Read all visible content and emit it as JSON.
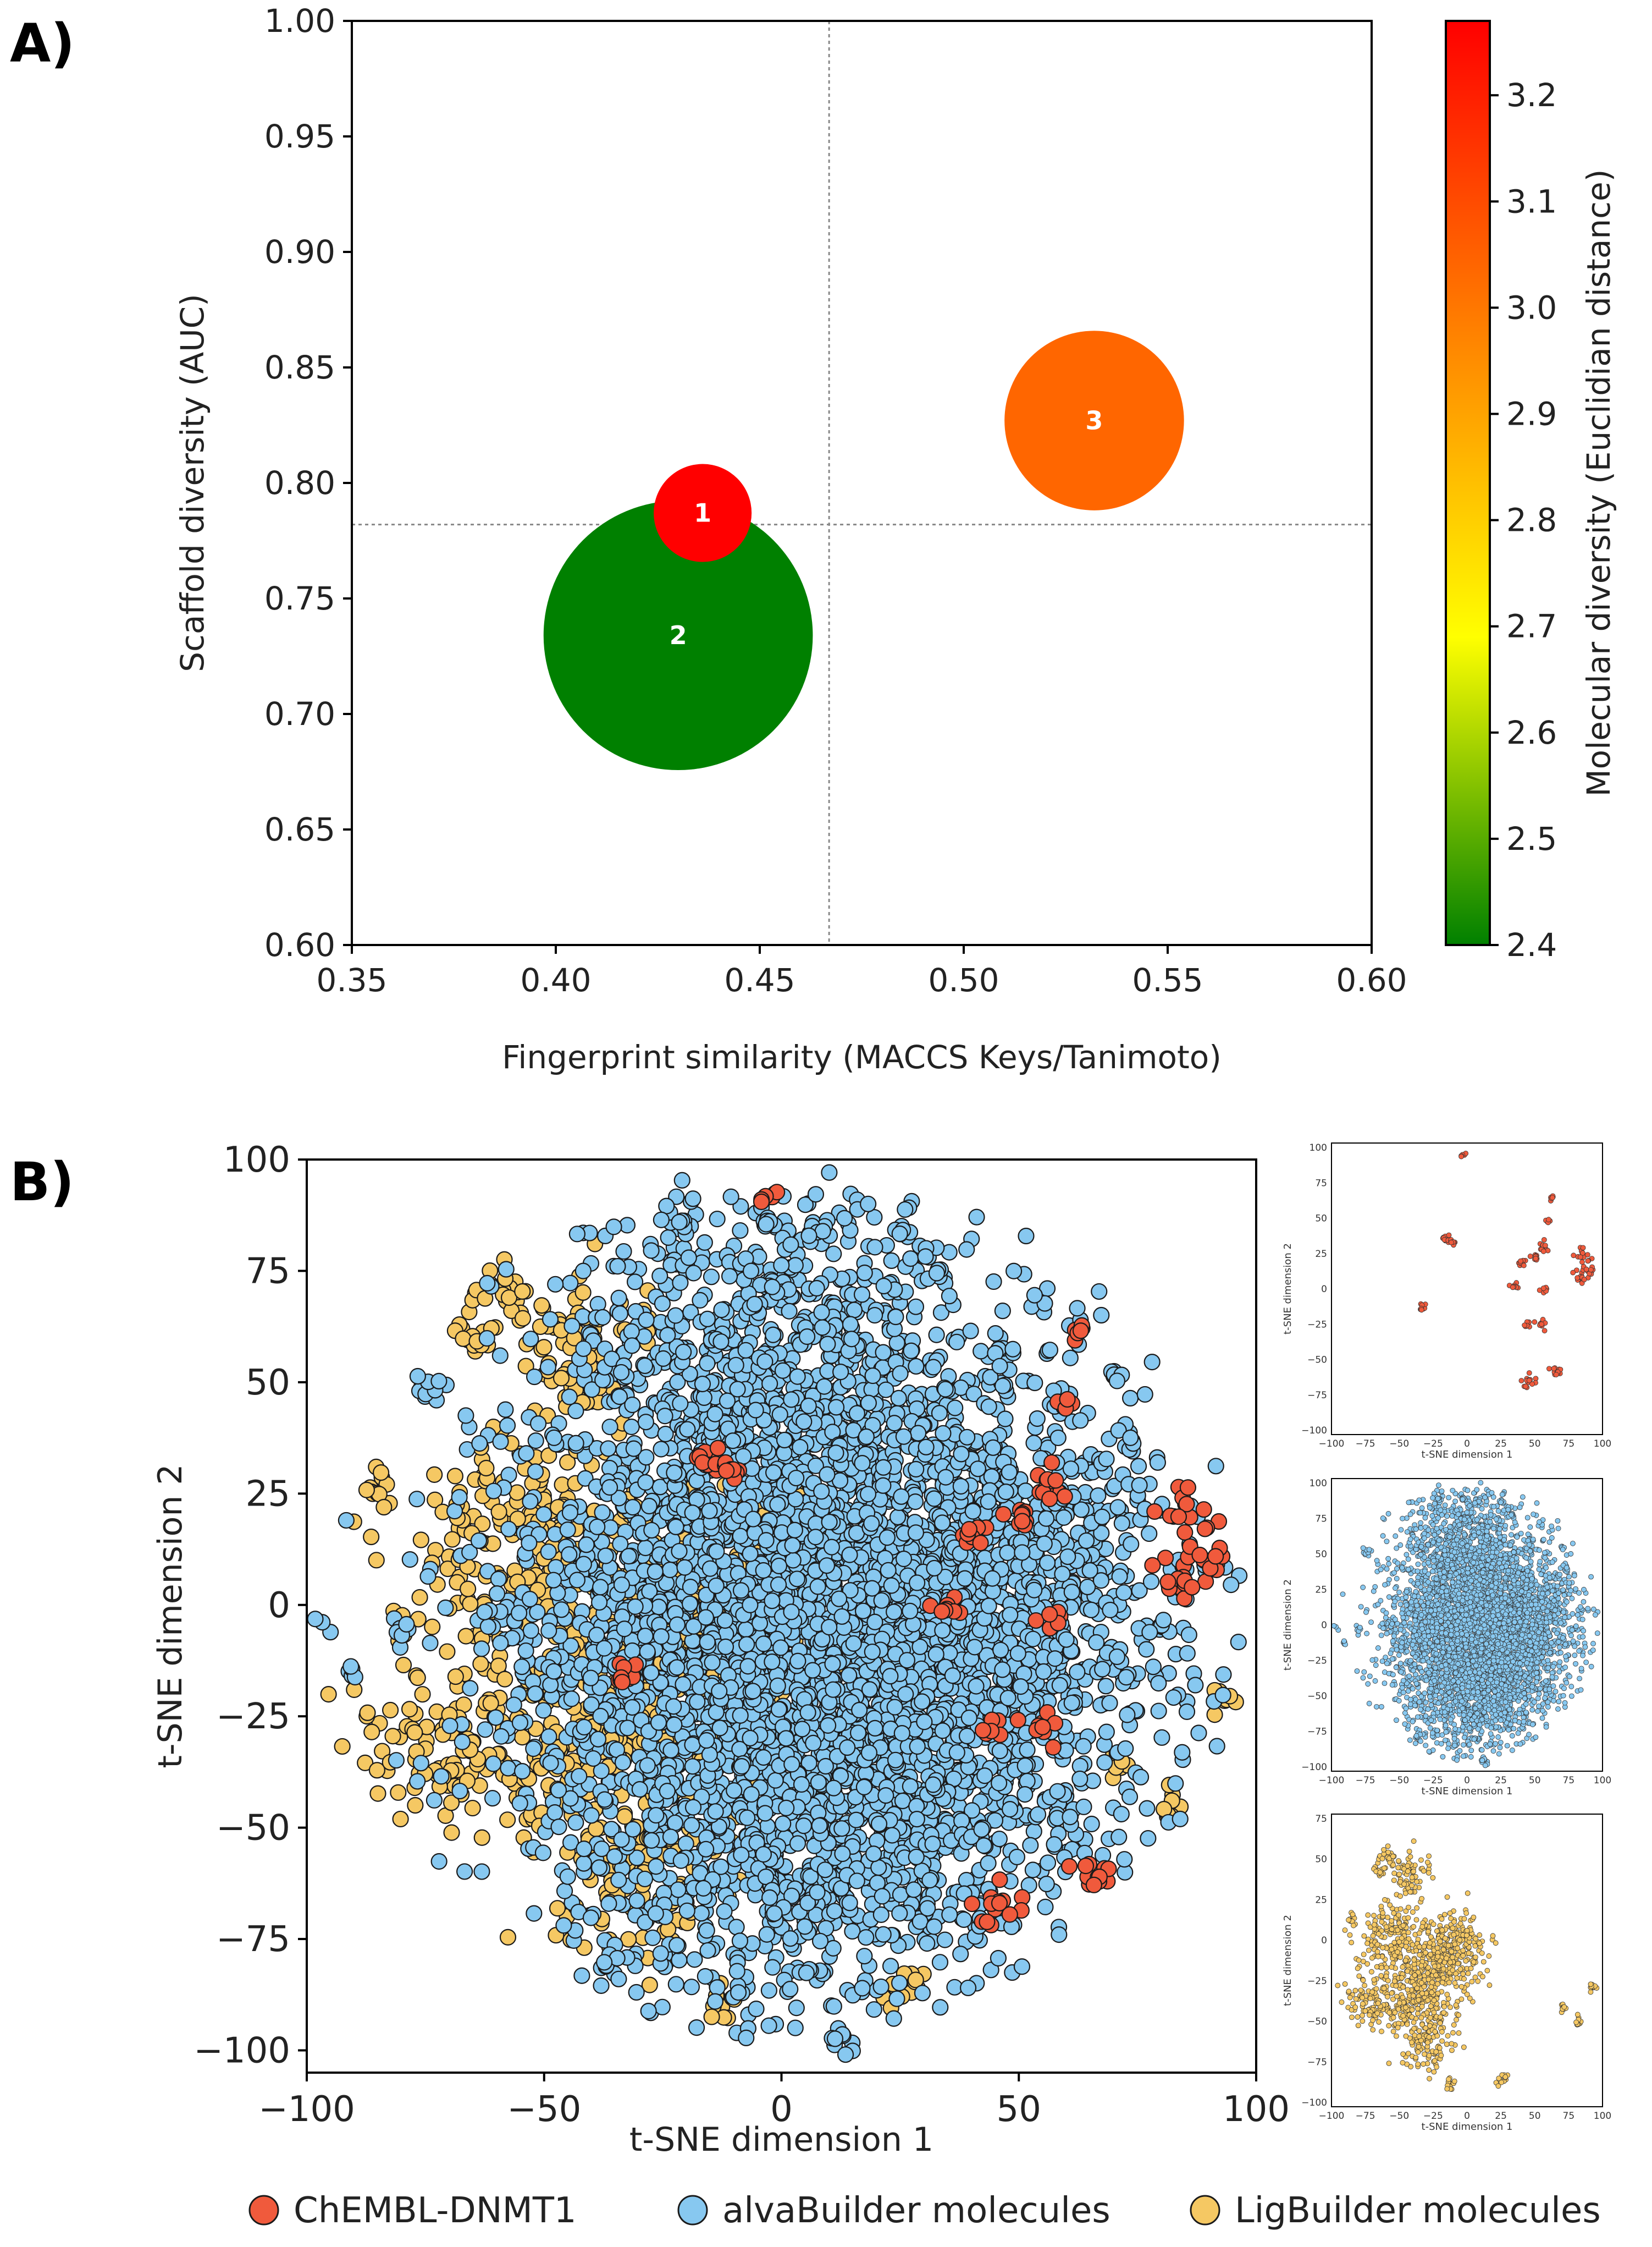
{
  "chart_data": [
    {
      "panel": "A)",
      "type": "scatter",
      "subtype": "bubble",
      "title": "",
      "xlabel": "Fingerprint similarity (MACCS Keys/Tanimoto)",
      "ylabel": "Scaffold diversity (AUC)",
      "xlim": [
        0.35,
        0.6
      ],
      "ylim": [
        0.6,
        1.0
      ],
      "xticks": [
        0.35,
        0.4,
        0.45,
        0.5,
        0.55,
        0.6
      ],
      "xtick_labels": [
        "0.35",
        "0.40",
        "0.45",
        "0.50",
        "0.55",
        "0.60"
      ],
      "yticks": [
        0.6,
        0.65,
        0.7,
        0.75,
        0.8,
        0.85,
        0.9,
        0.95,
        1.0
      ],
      "ytick_labels": [
        "0.60",
        "0.65",
        "0.70",
        "0.75",
        "0.80",
        "0.85",
        "0.90",
        "0.95",
        "1.00"
      ],
      "reference_lines": {
        "x": 0.467,
        "y": 0.782
      },
      "points": [
        {
          "label": "1",
          "x": 0.436,
          "y": 0.787,
          "radius_x": 0.012,
          "color_value": 3.27,
          "color": "#ff0000"
        },
        {
          "label": "2",
          "x": 0.43,
          "y": 0.734,
          "radius_x": 0.033,
          "color_value": 2.4,
          "color": "#008000"
        },
        {
          "label": "3",
          "x": 0.532,
          "y": 0.827,
          "radius_x": 0.022,
          "color_value": 3.13,
          "color": "#ff6600"
        }
      ],
      "colorbar": {
        "label": "Molecular diversity (Euclidian distance)",
        "range": [
          2.4,
          3.27
        ],
        "ticks": [
          2.4,
          2.5,
          2.6,
          2.7,
          2.8,
          2.9,
          3.0,
          3.1,
          3.2
        ],
        "tick_labels": [
          "2.4",
          "2.5",
          "2.6",
          "2.7",
          "2.8",
          "2.9",
          "3.0",
          "3.1",
          "3.2"
        ],
        "colors": [
          "#008000",
          "#ffff00",
          "#ff8000",
          "#ff0000"
        ]
      }
    },
    {
      "panel": "B)",
      "type": "scatter",
      "title": "",
      "xlabel": "t-SNE dimension 1",
      "ylabel": "t-SNE dimension 2",
      "xlim": [
        -100,
        100
      ],
      "ylim": [
        -105,
        100
      ],
      "xticks": [
        -100,
        -50,
        0,
        50,
        100
      ],
      "xtick_labels": [
        "−100",
        "−50",
        "0",
        "50",
        "100"
      ],
      "yticks": [
        -100,
        -75,
        -50,
        -25,
        0,
        25,
        50,
        75,
        100
      ],
      "ytick_labels": [
        "−100",
        "−75",
        "−50",
        "−25",
        "0",
        "25",
        "50",
        "75",
        "100"
      ],
      "series": [
        {
          "name": "ChEMBL-DNMT1",
          "color": "#f05a3c",
          "clusters": [
            [
              88,
              13,
              4
            ],
            [
              85,
              22,
              3
            ],
            [
              83,
              5,
              2
            ],
            [
              65,
              -60,
              2
            ],
            [
              46,
              -68,
              2.5
            ],
            [
              -3,
              91,
              1
            ],
            [
              -16,
              33,
              2
            ],
            [
              -10,
              30,
              1.5
            ],
            [
              56,
              28,
              2
            ],
            [
              50,
              20,
              1.5
            ],
            [
              40,
              15,
              1.5
            ],
            [
              35,
              0,
              1.5
            ],
            [
              45,
              -27,
              1.5
            ],
            [
              56,
              -28,
              1.5
            ],
            [
              60,
              45,
              1.2
            ],
            [
              63,
              62,
              1
            ],
            [
              57,
              -3,
              1.2
            ],
            [
              -33,
              -15,
              1.5
            ]
          ]
        },
        {
          "name": "alvaBuilder molecules",
          "color": "#87c8f0",
          "clusters": [
            [
              10,
              20,
              35
            ],
            [
              15,
              -5,
              30
            ],
            [
              25,
              -30,
              25
            ],
            [
              -5,
              55,
              20
            ],
            [
              45,
              10,
              20
            ],
            [
              0,
              -55,
              25
            ],
            [
              -20,
              -10,
              20
            ],
            [
              -75,
              50,
              1.5
            ],
            [
              -80,
              -5,
              1
            ],
            [
              -98,
              -3,
              1.5
            ],
            [
              -91,
              -15,
              1
            ],
            [
              -22,
              87,
              1.5
            ],
            [
              -3,
              85,
              1.2
            ],
            [
              8,
              85,
              1.2
            ],
            [
              25,
              84,
              1
            ],
            [
              13,
              -97,
              1.5
            ],
            [
              -35,
              -80,
              1.5
            ],
            [
              70,
              52,
              1
            ],
            [
              73,
              36,
              1
            ]
          ]
        },
        {
          "name": "LigBuilder molecules",
          "color": "#f5c863",
          "clusters": [
            [
              -20,
              -5,
              16
            ],
            [
              -40,
              -30,
              14
            ],
            [
              -10,
              10,
              10
            ],
            [
              -55,
              15,
              12
            ],
            [
              -30,
              -60,
              10
            ],
            [
              -70,
              -30,
              10
            ],
            [
              -45,
              55,
              8
            ],
            [
              -60,
              70,
              5
            ],
            [
              92,
              -21,
              1.5
            ],
            [
              82,
              -45,
              1.5
            ],
            [
              70,
              -35,
              1.5
            ],
            [
              -12,
              -90,
              2
            ],
            [
              26,
              -85,
              2
            ],
            [
              -65,
              60,
              2
            ],
            [
              -85,
              25,
              2
            ]
          ]
        }
      ],
      "insets": [
        {
          "series": "ChEMBL-DNMT1",
          "xlabel": "t-SNE dimension 1",
          "ylabel": "t-SNE dimension 2",
          "xticks": [
            "−100",
            "−75",
            "−50",
            "−25",
            "0",
            "25",
            "50",
            "75",
            "100"
          ],
          "yticks": [
            "100",
            "75",
            "50",
            "25",
            "0",
            "−25",
            "−50",
            "−75",
            "−100"
          ]
        },
        {
          "series": "alvaBuilder molecules",
          "xlabel": "t-SNE dimension 1",
          "ylabel": "t-SNE dimension 2",
          "xticks": [
            "−100",
            "−75",
            "−50",
            "−25",
            "0",
            "25",
            "50",
            "75",
            "100"
          ],
          "yticks": [
            "100",
            "75",
            "50",
            "25",
            "0",
            "−25",
            "−50",
            "−75",
            "−100"
          ]
        },
        {
          "series": "LigBuilder molecules",
          "xlabel": "t-SNE dimension 1",
          "ylabel": "t-SNE dimension 2",
          "xticks": [
            "−100",
            "−75",
            "−50",
            "−25",
            "0",
            "25",
            "50",
            "75",
            "100"
          ],
          "yticks": [
            "75",
            "50",
            "25",
            "0",
            "−25",
            "−50",
            "−75",
            "−100"
          ]
        }
      ],
      "legend": {
        "placement": "bottom",
        "entries": [
          "ChEMBL-DNMT1",
          "alvaBuilder molecules",
          "LigBuilder molecules"
        ]
      }
    }
  ]
}
